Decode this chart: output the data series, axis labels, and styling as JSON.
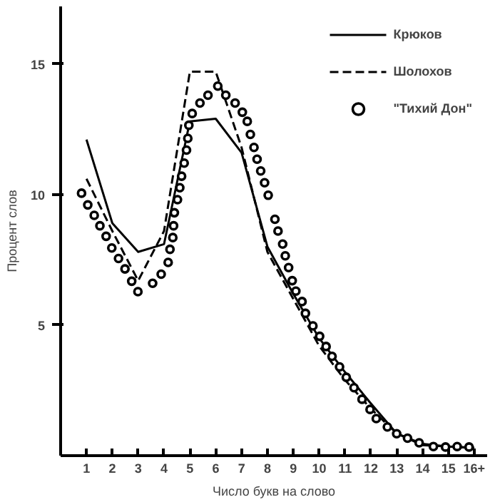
{
  "chart_data": {
    "type": "line",
    "xlabel": "Число букв на слово",
    "ylabel": "Процент слов",
    "xlim": [
      0,
      16.5
    ],
    "ylim": [
      0,
      17.2
    ],
    "xticks": [
      1,
      2,
      3,
      4,
      5,
      6,
      7,
      8,
      9,
      10,
      11,
      12,
      13,
      14,
      15,
      {
        "value": 16,
        "label": "16+"
      }
    ],
    "yticks": [
      5,
      10,
      15
    ],
    "grid": false,
    "legend": "top right",
    "series": [
      {
        "name": "Крюков",
        "color": "#000000",
        "line_style": "solid",
        "marker": "none",
        "x": [
          1,
          2,
          3,
          4,
          5,
          6,
          7,
          8,
          9,
          10,
          11,
          12,
          13,
          14,
          15,
          16
        ],
        "values": [
          12.1,
          8.9,
          7.8,
          8.1,
          12.8,
          12.9,
          11.6,
          8.0,
          6.2,
          4.5,
          3.2,
          2.0,
          0.85,
          0.45,
          0.35,
          0.3
        ]
      },
      {
        "name": "Шолохов",
        "color": "#000000",
        "line_style": "dashed",
        "marker": "none",
        "x": [
          1,
          2,
          3,
          4,
          5,
          6,
          7,
          8,
          9,
          10,
          11,
          12,
          13,
          14,
          15,
          16
        ],
        "values": [
          10.6,
          8.6,
          6.7,
          8.6,
          14.7,
          14.7,
          11.8,
          7.8,
          6.0,
          4.2,
          2.9,
          1.8,
          0.85,
          0.4,
          0.35,
          0.3
        ]
      },
      {
        "name": "\"Тихий Дон\"",
        "type": "scatter",
        "color": "#000000",
        "marker": "circle",
        "x": [
          0.81,
          1.05,
          1.3,
          1.52,
          1.76,
          1.98,
          2.24,
          2.49,
          2.75,
          2.99,
          3.56,
          3.89,
          4.16,
          4.23,
          4.34,
          4.37,
          4.4,
          4.52,
          4.61,
          4.68,
          4.78,
          4.87,
          4.92,
          4.96,
          5.09,
          5.39,
          5.7,
          6.08,
          6.39,
          6.75,
          7.03,
          7.22,
          7.34,
          7.48,
          7.6,
          7.74,
          7.89,
          8.03,
          8.29,
          8.41,
          8.59,
          8.69,
          8.82,
          8.96,
          9.1,
          9.34,
          9.47,
          9.76,
          10.02,
          10.27,
          10.5,
          10.79,
          11.05,
          11.35,
          11.66,
          11.97,
          12.21,
          12.64,
          13.0,
          13.42,
          13.87,
          14.42,
          14.89,
          15.34,
          15.8
        ],
        "values": [
          10.05,
          9.6,
          9.2,
          8.8,
          8.4,
          7.95,
          7.55,
          7.15,
          6.68,
          6.28,
          6.6,
          6.95,
          7.4,
          7.9,
          8.35,
          8.8,
          9.3,
          9.8,
          10.26,
          10.7,
          11.2,
          11.7,
          12.15,
          12.65,
          13.1,
          13.5,
          13.8,
          14.15,
          13.8,
          13.5,
          13.15,
          12.8,
          12.3,
          11.8,
          11.35,
          10.9,
          10.45,
          9.97,
          9.05,
          8.6,
          8.1,
          7.65,
          7.2,
          6.7,
          6.3,
          5.9,
          5.45,
          4.97,
          4.57,
          4.18,
          3.8,
          3.4,
          3.0,
          2.6,
          2.16,
          1.77,
          1.42,
          1.1,
          0.84,
          0.67,
          0.49,
          0.35,
          0.33,
          0.35,
          0.33
        ]
      }
    ]
  }
}
